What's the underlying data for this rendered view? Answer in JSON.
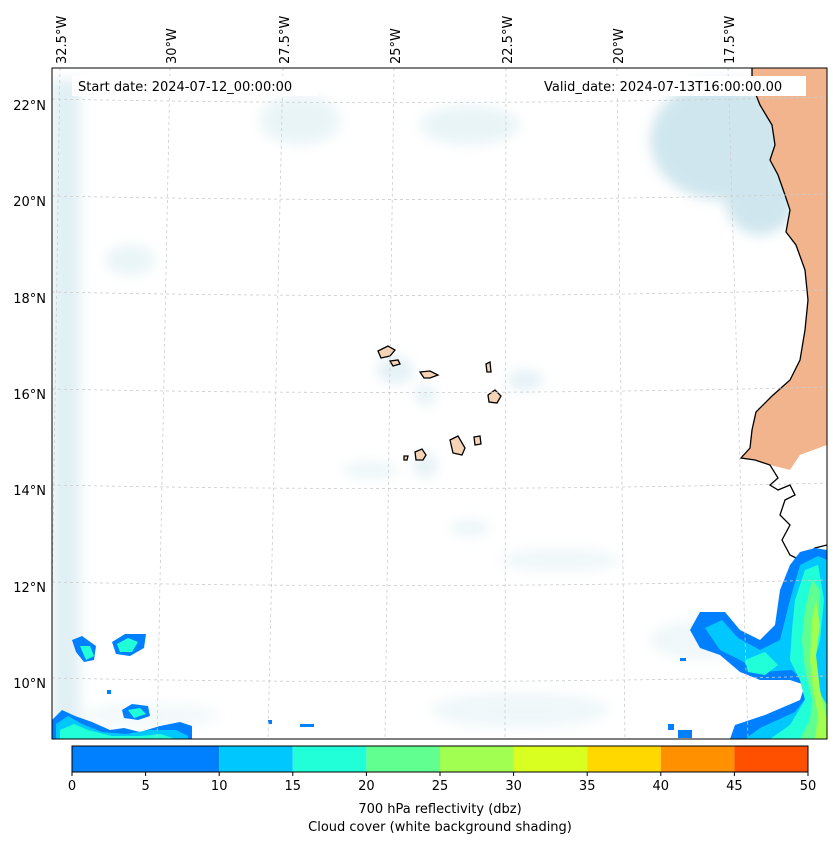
{
  "header": {
    "start_date": "Start date: 2024-07-12_00:00:00",
    "valid_date": "Valid_date: 2024-07-13T16:00:00.00"
  },
  "map": {
    "lon_labels": [
      "32.5°W",
      "30°W",
      "27.5°W",
      "25°W",
      "22.5°W",
      "20°W",
      "17.5°W"
    ],
    "lat_labels": [
      "22°N",
      "20°N",
      "18°N",
      "16°N",
      "14°N",
      "12°N",
      "10°N"
    ],
    "colors": {
      "land_fill": "#f7d3b6",
      "land_fill_sahara": "#f0a578",
      "cloud_shade": "#b9dde8",
      "coast": "#000000",
      "grid": "#cccccc"
    }
  },
  "colorbar": {
    "ticks": [
      "0",
      "5",
      "10",
      "15",
      "20",
      "25",
      "30",
      "35",
      "40",
      "45",
      "50"
    ],
    "colors": [
      "#0080ff",
      "#00c8ff",
      "#20ffd8",
      "#60ff90",
      "#a0ff50",
      "#d8ff20",
      "#ffd800",
      "#ff9000",
      "#ff5000"
    ],
    "label_line1": "700 hPa reflectivity (dbz)",
    "label_line2": "Cloud cover (white background shading)"
  }
}
